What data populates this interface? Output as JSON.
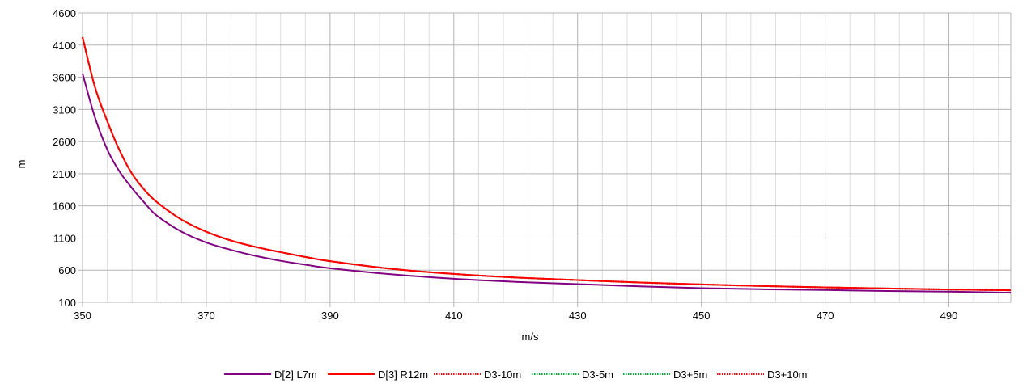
{
  "chart_data": {
    "type": "line",
    "title": "",
    "xlabel": "m/s",
    "ylabel": "m",
    "xlim": [
      350,
      500
    ],
    "ylim": [
      100,
      4600
    ],
    "x_ticks": [
      350,
      370,
      390,
      410,
      430,
      450,
      470,
      490
    ],
    "y_ticks": [
      100,
      600,
      1100,
      1600,
      2100,
      2600,
      3100,
      3600,
      4100,
      4600
    ],
    "grid": true,
    "legend_position": "bottom",
    "x": [
      350,
      352,
      354,
      356,
      358,
      360,
      362,
      366,
      370,
      374,
      378,
      382,
      386,
      390,
      400,
      410,
      420,
      430,
      440,
      450,
      460,
      470,
      480,
      490,
      500
    ],
    "series": [
      {
        "name": "D[2] L7m",
        "color": "#800080",
        "style": "solid",
        "values": [
          3657,
          2980,
          2476,
          2130,
          1876,
          1650,
          1449,
          1198,
          1030,
          915,
          821,
          745,
          685,
          630,
          535,
          466,
          418,
          383,
          348,
          320,
          303,
          291,
          276,
          266,
          250
        ]
      },
      {
        "name": "D[3] R12m",
        "color": "#ff0000",
        "style": "solid",
        "values": [
          4223,
          3450,
          2916,
          2460,
          2100,
          1850,
          1660,
          1386,
          1198,
          1060,
          960,
          880,
          805,
          740,
          620,
          541,
          485,
          445,
          408,
          378,
          353,
          332,
          315,
          300,
          287
        ]
      },
      {
        "name": "D3-10m",
        "color": "#ff0000",
        "style": "dotted",
        "values": [
          4223,
          3450,
          2916,
          2460,
          2100,
          1850,
          1660,
          1386,
          1198,
          1060,
          960,
          880,
          805,
          740,
          620,
          541,
          485,
          445,
          408,
          378,
          353,
          332,
          315,
          300,
          287
        ]
      },
      {
        "name": "D3-5m",
        "color": "#00a933",
        "style": "dotted",
        "values": [
          4223,
          3450,
          2916,
          2460,
          2100,
          1850,
          1660,
          1386,
          1198,
          1060,
          960,
          880,
          805,
          740,
          620,
          541,
          485,
          445,
          408,
          378,
          353,
          332,
          315,
          300,
          287
        ]
      },
      {
        "name": "D3+5m",
        "color": "#00a933",
        "style": "dotted",
        "values": [
          4223,
          3450,
          2916,
          2460,
          2100,
          1850,
          1660,
          1386,
          1198,
          1060,
          960,
          880,
          805,
          740,
          620,
          541,
          485,
          445,
          408,
          378,
          353,
          332,
          315,
          300,
          287
        ]
      },
      {
        "name": "D3+10m",
        "color": "#ff0000",
        "style": "dotted",
        "values": [
          4223,
          3450,
          2916,
          2460,
          2100,
          1850,
          1660,
          1386,
          1198,
          1060,
          960,
          880,
          805,
          740,
          620,
          541,
          485,
          445,
          408,
          378,
          353,
          332,
          315,
          300,
          287
        ]
      }
    ]
  }
}
